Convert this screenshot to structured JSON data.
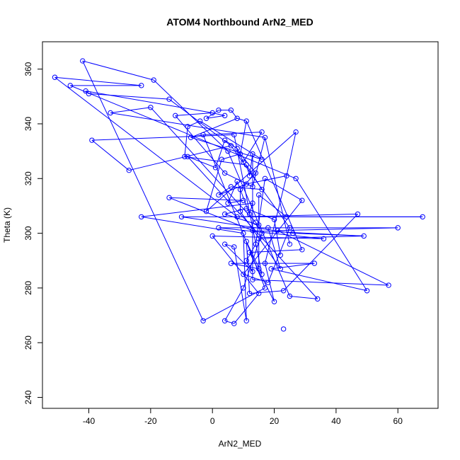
{
  "chart_data": {
    "type": "line",
    "title": "ATOM4 Northbound ArN2_MED",
    "xlabel": "ArN2_MED",
    "ylabel": "Theta (K)",
    "xlim": [
      -55,
      73
    ],
    "ylim": [
      236,
      370
    ],
    "xticks": [
      -40,
      -20,
      0,
      20,
      40,
      60
    ],
    "yticks": [
      240,
      260,
      280,
      300,
      320,
      340,
      360
    ],
    "grid": false,
    "legend": "none",
    "series": [
      {
        "color": "#0000ff",
        "marker": "open-circle",
        "points": [
          [
            -42,
            363
          ],
          [
            -19,
            356
          ],
          [
            -51,
            357
          ],
          [
            -23,
            354
          ],
          [
            -46,
            354
          ],
          [
            -41,
            352
          ],
          [
            -40,
            351
          ],
          [
            -14,
            349
          ],
          [
            -20,
            346
          ],
          [
            -33,
            344
          ],
          [
            6,
            345
          ],
          [
            2,
            345
          ],
          [
            0,
            344
          ],
          [
            -12,
            343
          ],
          [
            4,
            343
          ],
          [
            8,
            342
          ],
          [
            -2,
            342
          ],
          [
            11,
            341
          ],
          [
            -4,
            341
          ],
          [
            -8,
            339
          ],
          [
            16,
            337
          ],
          [
            27,
            337
          ],
          [
            -3,
            336
          ],
          [
            17,
            335
          ],
          [
            -7,
            335
          ],
          [
            7,
            336
          ],
          [
            -39,
            334
          ],
          [
            4,
            334
          ],
          [
            6,
            332
          ],
          [
            8,
            331
          ],
          [
            5,
            330
          ],
          [
            9,
            329
          ],
          [
            -9,
            328
          ],
          [
            -8,
            328
          ],
          [
            13,
            329
          ],
          [
            16,
            327
          ],
          [
            3,
            327
          ],
          [
            10,
            326
          ],
          [
            1,
            324
          ],
          [
            11,
            325
          ],
          [
            14,
            322
          ],
          [
            24,
            321
          ],
          [
            4,
            322
          ],
          [
            12,
            321
          ],
          [
            -27,
            323
          ],
          [
            27,
            320
          ],
          [
            17,
            320
          ],
          [
            8,
            319
          ],
          [
            11,
            318
          ],
          [
            6,
            317
          ],
          [
            13,
            317
          ],
          [
            16,
            316
          ],
          [
            9,
            316
          ],
          [
            2,
            314
          ],
          [
            15,
            314
          ],
          [
            -14,
            313
          ],
          [
            29,
            312
          ],
          [
            10,
            312
          ],
          [
            5,
            311
          ],
          [
            13,
            311
          ],
          [
            -23,
            306
          ],
          [
            -10,
            306
          ],
          [
            20,
            305
          ],
          [
            8,
            306
          ],
          [
            47,
            307
          ],
          [
            68,
            306
          ],
          [
            24,
            306
          ],
          [
            12,
            307
          ],
          [
            4,
            307
          ],
          [
            9,
            308
          ],
          [
            11,
            309
          ],
          [
            -2,
            308
          ],
          [
            14,
            304
          ],
          [
            15,
            303
          ],
          [
            25,
            302
          ],
          [
            18,
            302
          ],
          [
            60,
            302
          ],
          [
            21,
            301
          ],
          [
            2,
            302
          ],
          [
            26,
            300
          ],
          [
            10,
            300
          ],
          [
            13,
            301
          ],
          [
            16,
            300
          ],
          [
            0,
            299
          ],
          [
            49,
            299
          ],
          [
            15,
            298
          ],
          [
            36,
            298
          ],
          [
            11,
            297
          ],
          [
            25,
            296
          ],
          [
            4,
            296
          ],
          [
            7,
            295
          ],
          [
            14,
            296
          ],
          [
            12,
            293
          ],
          [
            29,
            294
          ],
          [
            22,
            292
          ],
          [
            33,
            289
          ],
          [
            6,
            289
          ],
          [
            17,
            289
          ],
          [
            11,
            290
          ],
          [
            13,
            286
          ],
          [
            15,
            287
          ],
          [
            19,
            287
          ],
          [
            22,
            287
          ],
          [
            16,
            285
          ],
          [
            18,
            282
          ],
          [
            10,
            285
          ],
          [
            13,
            283
          ],
          [
            57,
            281
          ],
          [
            50,
            279
          ],
          [
            10,
            280
          ],
          [
            17,
            280
          ],
          [
            23,
            279
          ],
          [
            12,
            278
          ],
          [
            15,
            278
          ],
          [
            25,
            277
          ],
          [
            34,
            276
          ],
          [
            20,
            275
          ],
          [
            -3,
            268
          ],
          [
            4,
            268
          ],
          [
            11,
            268
          ],
          [
            7,
            267
          ],
          [
            23,
            265
          ]
        ],
        "segments": [
          [
            0,
            1
          ],
          [
            0,
            117
          ],
          [
            1,
            30
          ],
          [
            2,
            3
          ],
          [
            2,
            63
          ],
          [
            3,
            4
          ],
          [
            4,
            45
          ],
          [
            5,
            6
          ],
          [
            5,
            12
          ],
          [
            6,
            7
          ],
          [
            7,
            28
          ],
          [
            8,
            9
          ],
          [
            8,
            72
          ],
          [
            9,
            23
          ],
          [
            10,
            11
          ],
          [
            10,
            15
          ],
          [
            11,
            16
          ],
          [
            12,
            13
          ],
          [
            12,
            14
          ],
          [
            13,
            42
          ],
          [
            14,
            16
          ],
          [
            15,
            17
          ],
          [
            15,
            24
          ],
          [
            17,
            31
          ],
          [
            17,
            93
          ],
          [
            18,
            19
          ],
          [
            18,
            35
          ],
          [
            19,
            32
          ],
          [
            20,
            22
          ],
          [
            20,
            37
          ],
          [
            21,
            41
          ],
          [
            21,
            71
          ],
          [
            22,
            24
          ],
          [
            22,
            110
          ],
          [
            23,
            50
          ],
          [
            23,
            88
          ],
          [
            24,
            35
          ],
          [
            25,
            26
          ],
          [
            25,
            103
          ],
          [
            26,
            44
          ],
          [
            27,
            29
          ],
          [
            27,
            38
          ],
          [
            28,
            44
          ],
          [
            28,
            74
          ],
          [
            29,
            37
          ],
          [
            30,
            114
          ],
          [
            31,
            36
          ],
          [
            31,
            40
          ],
          [
            32,
            39
          ],
          [
            33,
            38
          ],
          [
            33,
            115
          ],
          [
            34,
            43
          ],
          [
            34,
            106
          ],
          [
            36,
            71
          ],
          [
            39,
            43
          ],
          [
            39,
            51
          ],
          [
            40,
            52
          ],
          [
            41,
            48
          ],
          [
            41,
            97
          ],
          [
            42,
            50
          ],
          [
            45,
            108
          ],
          [
            46,
            56
          ],
          [
            46,
            91
          ],
          [
            47,
            58
          ],
          [
            47,
            67
          ],
          [
            48,
            53
          ],
          [
            49,
            51
          ],
          [
            49,
            53
          ],
          [
            52,
            69
          ],
          [
            54,
            66
          ],
          [
            54,
            73
          ],
          [
            55,
            57
          ],
          [
            55,
            81
          ],
          [
            56,
            105
          ],
          [
            57,
            58
          ],
          [
            59,
            60
          ],
          [
            59,
            67
          ],
          [
            60,
            80
          ],
          [
            61,
            65
          ],
          [
            61,
            79
          ],
          [
            62,
            70
          ],
          [
            62,
            94
          ],
          [
            63,
            64
          ],
          [
            64,
            111
          ],
          [
            65,
            66
          ],
          [
            68,
            70
          ],
          [
            68,
            73
          ],
          [
            69,
            102
          ],
          [
            72,
            82
          ],
          [
            74,
            104
          ],
          [
            75,
            102
          ],
          [
            76,
            77
          ],
          [
            76,
            78
          ],
          [
            77,
            107
          ],
          [
            78,
            86
          ],
          [
            79,
            84
          ],
          [
            80,
            119
          ],
          [
            81,
            84
          ],
          [
            82,
            109
          ],
          [
            83,
            86
          ],
          [
            83,
            113
          ],
          [
            84,
            85
          ],
          [
            85,
            100
          ],
          [
            87,
            103
          ],
          [
            87,
            112
          ],
          [
            89,
            90
          ],
          [
            89,
            99
          ],
          [
            90,
            119
          ],
          [
            91,
            98
          ],
          [
            92,
            93
          ],
          [
            92,
            116
          ],
          [
            95,
            96
          ],
          [
            95,
            101
          ],
          [
            96,
            100
          ],
          [
            97,
            116
          ],
          [
            98,
            99
          ],
          [
            101,
            108
          ],
          [
            104,
            105
          ],
          [
            106,
            107
          ],
          [
            109,
            118
          ],
          [
            110,
            117
          ],
          [
            111,
            112
          ],
          [
            113,
            120
          ],
          [
            114,
            115
          ],
          [
            118,
            120
          ]
        ]
      }
    ]
  }
}
